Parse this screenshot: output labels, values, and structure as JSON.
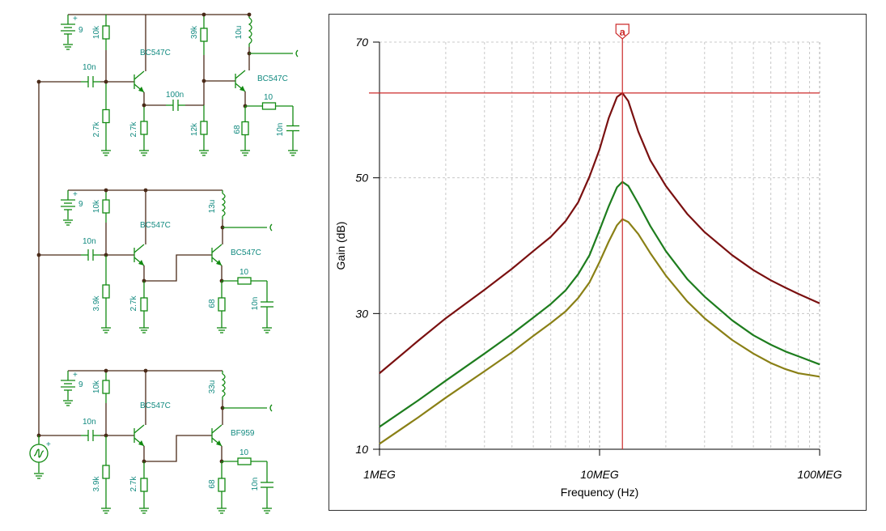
{
  "schematic": {
    "battery_label": "9",
    "circuits": [
      {
        "id": "c1",
        "r_top1": "10k",
        "r_bot1": "2.7k",
        "c_in": "10n",
        "q1": "BC547C",
        "r_e1": "2.7k",
        "c_couple": "100n",
        "r_top2": "39k",
        "r_bot2": "12k",
        "l_load": "10u",
        "q2": "BC547C",
        "r_e2": "68",
        "r_out": "10",
        "c_out": "10n"
      },
      {
        "id": "c2",
        "r_top1": "10k",
        "r_bot1": "3.9k",
        "c_in": "10n",
        "q1": "BC547C",
        "r_e1": "2.7k",
        "l_load": "13u",
        "q2": "BC547C",
        "r_e2": "68",
        "r_out": "10",
        "c_out": "10n"
      },
      {
        "id": "c3",
        "r_top1": "10k",
        "r_bot1": "3.9k",
        "c_in": "10n",
        "q1": "BC547C",
        "r_e1": "2.7k",
        "l_load": "33u",
        "q2": "BF959",
        "r_e2": "68",
        "r_out": "10",
        "c_out": "10n"
      }
    ]
  },
  "chart_data": {
    "type": "line",
    "xlabel": "Frequency (Hz)",
    "ylabel": "Gain (dB)",
    "x_scale": "log",
    "xlim": [
      1000000,
      100000000
    ],
    "ylim": [
      10,
      70
    ],
    "x_ticks": [
      {
        "value": 1000000,
        "label": "1MEG"
      },
      {
        "value": 10000000,
        "label": "10MEG"
      },
      {
        "value": 100000000,
        "label": "100MEG"
      }
    ],
    "y_ticks": [
      {
        "value": 10,
        "label": "10"
      },
      {
        "value": 30,
        "label": "30"
      },
      {
        "value": 50,
        "label": "50"
      },
      {
        "value": 70,
        "label": "70"
      }
    ],
    "grid": true,
    "cursor": {
      "label": "a",
      "x": 12700000,
      "y": 62.5,
      "color": "#cc2b2b"
    },
    "series": [
      {
        "color": "#7a1010",
        "points": [
          [
            1000000,
            21.2
          ],
          [
            1500000,
            26
          ],
          [
            2000000,
            29.3
          ],
          [
            3000000,
            33.5
          ],
          [
            4000000,
            36.6
          ],
          [
            5000000,
            39.2
          ],
          [
            6000000,
            41.3
          ],
          [
            7000000,
            43.6
          ],
          [
            8000000,
            46.4
          ],
          [
            9000000,
            50.2
          ],
          [
            10000000,
            54.2
          ],
          [
            11000000,
            58.8
          ],
          [
            12000000,
            61.9
          ],
          [
            12700000,
            62.5
          ],
          [
            13500000,
            61.3
          ],
          [
            15000000,
            56.8
          ],
          [
            17000000,
            52.6
          ],
          [
            20000000,
            48.8
          ],
          [
            25000000,
            44.7
          ],
          [
            30000000,
            42
          ],
          [
            40000000,
            38.6
          ],
          [
            50000000,
            36.4
          ],
          [
            60000000,
            34.9
          ],
          [
            70000000,
            33.8
          ],
          [
            80000000,
            32.9
          ],
          [
            100000000,
            31.5
          ]
        ]
      },
      {
        "color": "#1e7d1e",
        "points": [
          [
            1000000,
            13.3
          ],
          [
            1500000,
            17.2
          ],
          [
            2000000,
            20.1
          ],
          [
            3000000,
            24.1
          ],
          [
            4000000,
            27
          ],
          [
            5000000,
            29.4
          ],
          [
            6000000,
            31.4
          ],
          [
            7000000,
            33.4
          ],
          [
            8000000,
            35.8
          ],
          [
            9000000,
            38.6
          ],
          [
            10000000,
            42.3
          ],
          [
            11000000,
            45.8
          ],
          [
            12000000,
            48.6
          ],
          [
            12700000,
            49.4
          ],
          [
            13500000,
            48.8
          ],
          [
            15000000,
            46.2
          ],
          [
            17000000,
            42.9
          ],
          [
            20000000,
            39.2
          ],
          [
            25000000,
            35.1
          ],
          [
            30000000,
            32.5
          ],
          [
            40000000,
            29
          ],
          [
            50000000,
            26.8
          ],
          [
            60000000,
            25.4
          ],
          [
            70000000,
            24.4
          ],
          [
            80000000,
            23.7
          ],
          [
            100000000,
            22.5
          ]
        ]
      },
      {
        "color": "#8a8016",
        "points": [
          [
            1000000,
            10.8
          ],
          [
            1500000,
            14.7
          ],
          [
            2000000,
            17.6
          ],
          [
            3000000,
            21.5
          ],
          [
            4000000,
            24.3
          ],
          [
            5000000,
            26.7
          ],
          [
            6000000,
            28.6
          ],
          [
            7000000,
            30.3
          ],
          [
            8000000,
            32.3
          ],
          [
            9000000,
            34.6
          ],
          [
            10000000,
            37.6
          ],
          [
            11000000,
            40.6
          ],
          [
            12000000,
            43
          ],
          [
            12700000,
            43.9
          ],
          [
            13500000,
            43.5
          ],
          [
            15000000,
            41.7
          ],
          [
            17000000,
            38.9
          ],
          [
            20000000,
            35.6
          ],
          [
            25000000,
            31.8
          ],
          [
            30000000,
            29.3
          ],
          [
            40000000,
            26.1
          ],
          [
            50000000,
            24.1
          ],
          [
            60000000,
            22.7
          ],
          [
            70000000,
            21.8
          ],
          [
            80000000,
            21.2
          ],
          [
            100000000,
            20.7
          ]
        ]
      }
    ]
  }
}
